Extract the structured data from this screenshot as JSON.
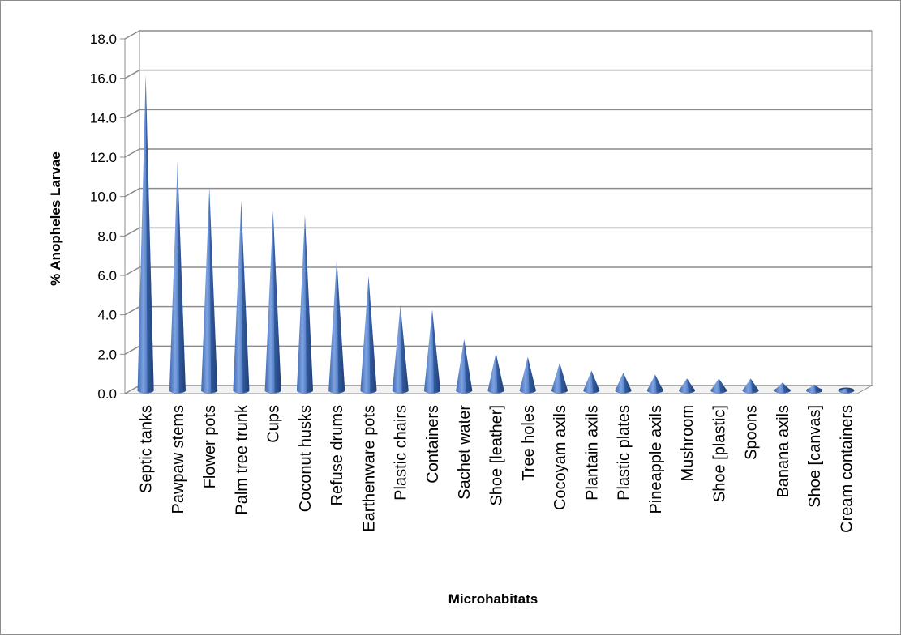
{
  "chart_data": {
    "type": "bar",
    "style": "3d-cone",
    "xlabel": "Microhabitats",
    "ylabel": "% Anopheles Larvae",
    "ylim": [
      0,
      18
    ],
    "yticks": [
      "0.0",
      "2.0",
      "4.0",
      "6.0",
      "8.0",
      "10.0",
      "12.0",
      "14.0",
      "16.0",
      "18.0"
    ],
    "grid": true,
    "legend": "none",
    "categories": [
      "Septic tanks",
      "Pawpaw stems",
      "Flower pots",
      "Palm tree trunk",
      "Cups",
      "Coconut husks",
      "Refuse drums",
      "Earthenware pots",
      "Plastic chairs",
      "Containers",
      "Sachet water",
      "Shoe [leather]",
      "Tree holes",
      "Cocoyam axils",
      "Plantain axils",
      "Plastic plates",
      "Pineapple axils",
      "Mushroom",
      "Shoe [plastic]",
      "Spoons",
      "Banana axils",
      "Shoe [canvas]",
      "Cream containers"
    ],
    "values": [
      16.0,
      11.6,
      10.3,
      9.6,
      9.1,
      8.9,
      6.7,
      5.8,
      4.3,
      4.1,
      2.6,
      1.9,
      1.7,
      1.4,
      1.0,
      0.9,
      0.8,
      0.6,
      0.6,
      0.6,
      0.4,
      0.3,
      0.1
    ],
    "colors": {
      "bar_light": "#6f97d8",
      "bar_mid": "#4a76c1",
      "bar_dark": "#23457e",
      "grid": "#8c8c8c",
      "wall": "#ffffff"
    }
  }
}
